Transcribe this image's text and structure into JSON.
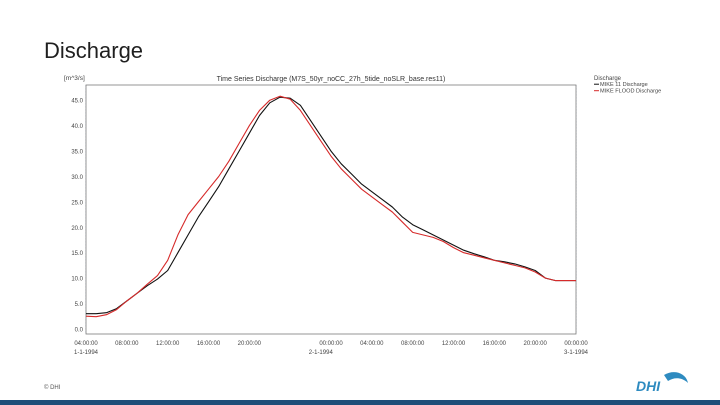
{
  "slide": {
    "title": "Discharge",
    "copyright": "© DHI",
    "logo_text": "DHI",
    "colors": {
      "footer_bar": "#1e4e79",
      "logo": "#2e8bc0"
    }
  },
  "chart_data": {
    "type": "line",
    "title": "Time Series Discharge (M7S_50yr_noCC_27h_5tide_noSLR_base.res11)",
    "ylabel": "[m^3/s]",
    "ylim": [
      -1,
      48
    ],
    "yticks": [
      0.0,
      5.0,
      10.0,
      15.0,
      20.0,
      25.0,
      30.0,
      35.0,
      40.0,
      45.0
    ],
    "ytick_labels": [
      "0.0",
      "5.0",
      "10.0",
      "15.0",
      "20.0",
      "25.0",
      "30.0",
      "35.0",
      "40.0",
      "45.0"
    ],
    "xlim": [
      4,
      52
    ],
    "xticks": [
      4,
      8,
      12,
      16,
      20,
      24,
      28,
      32,
      36,
      40,
      44,
      48,
      52
    ],
    "xtick_labels": [
      "04:00:00",
      "08:00:00",
      "12:00:00",
      "16:00:00",
      "20:00:00",
      "00:00:00",
      "04:00:00",
      "08:00:00",
      "12:00:00",
      "16:00:00",
      "20:00:00",
      "00:00:00"
    ],
    "xtick_label_hours": [
      4,
      8,
      12,
      16,
      20,
      28,
      32,
      36,
      40,
      44,
      48,
      52
    ],
    "date_labels": [
      {
        "hour": 4,
        "text": "1-1-1994"
      },
      {
        "hour": 27,
        "text": "2-1-1994"
      },
      {
        "hour": 52,
        "text": "3-1-1994"
      }
    ],
    "grid": true,
    "legend": {
      "title": "Discharge",
      "placement": "right-top"
    },
    "series": [
      {
        "name": "MIKE 11 Discharge",
        "color": "#111111",
        "x": [
          4,
          5,
          6,
          7,
          8,
          9,
          10,
          11,
          12,
          13,
          14,
          15,
          16,
          17,
          18,
          19,
          20,
          21,
          22,
          23,
          24,
          25,
          26,
          27,
          28,
          29,
          30,
          31,
          32,
          33,
          34,
          35,
          36,
          37,
          38,
          39,
          40,
          41,
          42,
          43,
          44,
          45,
          46,
          47,
          48,
          49,
          50,
          51,
          52
        ],
        "y": [
          3.0,
          3.0,
          3.2,
          4.0,
          5.5,
          7.0,
          8.5,
          9.8,
          11.5,
          15.0,
          18.5,
          22.0,
          25.0,
          28.0,
          31.5,
          35.0,
          38.5,
          42.0,
          44.5,
          45.6,
          45.4,
          44.0,
          41.0,
          38.0,
          35.0,
          32.5,
          30.5,
          28.5,
          27.0,
          25.5,
          24.0,
          22.0,
          20.5,
          19.5,
          18.5,
          17.5,
          16.5,
          15.5,
          14.8,
          14.2,
          13.5,
          13.2,
          12.8,
          12.2,
          11.5,
          10.0,
          9.5,
          9.5,
          9.5
        ]
      },
      {
        "name": "MIKE FLOOD Discharge",
        "color": "#d62a2a",
        "x": [
          4,
          5,
          6,
          7,
          8,
          9,
          10,
          11,
          12,
          13,
          14,
          15,
          16,
          17,
          18,
          19,
          20,
          21,
          22,
          23,
          24,
          25,
          26,
          27,
          28,
          29,
          30,
          31,
          32,
          33,
          34,
          35,
          36,
          37,
          38,
          39,
          40,
          41,
          42,
          43,
          44,
          45,
          46,
          47,
          48,
          49,
          50,
          51,
          52
        ],
        "y": [
          2.5,
          2.4,
          2.8,
          3.8,
          5.5,
          7.0,
          8.8,
          10.5,
          13.5,
          18.5,
          22.5,
          25.0,
          27.5,
          30.0,
          33.0,
          36.5,
          40.0,
          43.0,
          45.0,
          45.8,
          45.2,
          43.0,
          40.0,
          37.0,
          34.0,
          31.5,
          29.5,
          27.5,
          26.0,
          24.5,
          23.0,
          21.0,
          19.0,
          18.5,
          18.0,
          17.2,
          16.0,
          15.0,
          14.5,
          14.0,
          13.5,
          13.0,
          12.5,
          12.0,
          11.2,
          10.0,
          9.5,
          9.5,
          9.5
        ]
      }
    ]
  }
}
